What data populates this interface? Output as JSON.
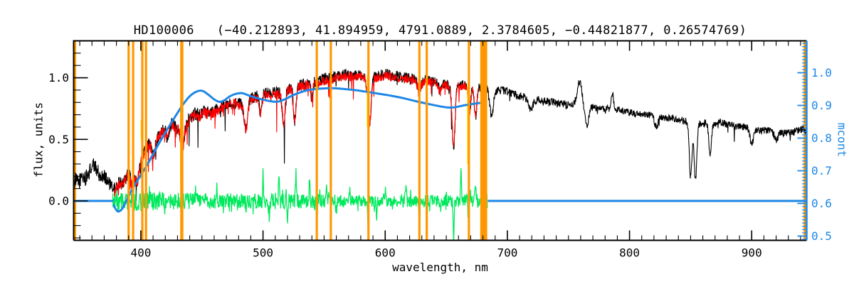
{
  "figure": {
    "title": "HD100006   (−40.212893, 41.894959, 4791.0889, 2.3784605, −0.44821877, 0.26574769)",
    "xlabel": "wavelength, nm",
    "ylabel_left": "flux, units",
    "ylabel_right": "mcont"
  },
  "colors": {
    "spectrum_observed": "#000000",
    "spectrum_fit": "#FF0000",
    "continuum": "#1E87E6",
    "residual": "#00E95C",
    "mask_lines": "#FF9800",
    "mask_hidden": "#FFE800",
    "axis": "#000000",
    "axis_right": "#1E87E6",
    "background": "#FFFFFF"
  },
  "chart_data": {
    "type": "line",
    "title": "HD100006   (−40.212893, 41.894959, 4791.0889, 2.3784605, −0.44821877, 0.26574769)",
    "xlabel": "wavelength, nm",
    "ylabel_left": "flux, units",
    "ylabel_right": "mcont",
    "grid": false,
    "x_range_nm": [
      345,
      945
    ],
    "y_range_flux": [
      -0.32,
      1.3
    ],
    "y_range_mcont": [
      0.486,
      1.097
    ],
    "x_major_ticks": [
      400,
      500,
      600,
      700,
      800,
      900
    ],
    "x_minor_step_nm": 10,
    "y_major_ticks_flux": [
      0.0,
      0.5,
      1.0
    ],
    "y_minor_step_flux": 0.1,
    "y_major_ticks_mcont": [
      0.5,
      0.6,
      0.7,
      0.8,
      0.9,
      1.0
    ],
    "y_minor_step_mcont": 0.01,
    "marker_lines_nm": [
      346,
      390,
      393.7,
      401.2,
      404.2,
      433.5,
      544,
      555.5,
      586.3,
      628,
      634,
      668.5,
      943.5
    ],
    "marker_band_nm": [
      677.8,
      683.5
    ],
    "series": [
      {
        "name": "observed-spectrum",
        "color": "#000000",
        "x_span": [
          345,
          945
        ],
        "noise_halfwidth": [
          [
            345,
            0.07
          ],
          [
            380,
            0.05
          ],
          [
            420,
            0.055
          ],
          [
            480,
            0.05
          ],
          [
            540,
            0.05
          ],
          [
            600,
            0.045
          ],
          [
            660,
            0.04
          ],
          [
            700,
            0.035
          ],
          [
            760,
            0.03
          ],
          [
            850,
            0.028
          ],
          [
            945,
            0.032
          ]
        ],
        "envelope": [
          [
            345,
            0.17
          ],
          [
            349,
            0.15
          ],
          [
            352,
            0.2
          ],
          [
            355,
            0.18
          ],
          [
            358,
            0.24
          ],
          [
            361,
            0.29
          ],
          [
            364,
            0.26
          ],
          [
            367,
            0.19
          ],
          [
            370,
            0.21
          ],
          [
            373,
            0.16
          ],
          [
            376,
            0.11
          ],
          [
            379,
            0.1
          ],
          [
            382,
            0.15
          ],
          [
            385,
            0.14
          ],
          [
            388,
            0.19
          ],
          [
            391,
            0.23
          ],
          [
            394,
            0.22
          ],
          [
            397,
            0.26
          ],
          [
            400,
            0.33
          ],
          [
            403,
            0.41
          ],
          [
            406,
            0.47
          ],
          [
            409,
            0.5
          ],
          [
            412,
            0.5
          ],
          [
            415,
            0.54
          ],
          [
            418,
            0.57
          ],
          [
            421,
            0.6
          ],
          [
            424,
            0.63
          ],
          [
            427,
            0.62
          ],
          [
            430,
            0.6
          ],
          [
            433,
            0.59
          ],
          [
            436,
            0.62
          ],
          [
            440,
            0.67
          ],
          [
            444,
            0.71
          ],
          [
            448,
            0.7
          ],
          [
            452,
            0.73
          ],
          [
            456,
            0.71
          ],
          [
            460,
            0.73
          ],
          [
            465,
            0.76
          ],
          [
            470,
            0.78
          ],
          [
            475,
            0.8
          ],
          [
            480,
            0.79
          ],
          [
            485,
            0.78
          ],
          [
            490,
            0.83
          ],
          [
            495,
            0.85
          ],
          [
            500,
            0.87
          ],
          [
            505,
            0.88
          ],
          [
            510,
            0.88
          ],
          [
            515,
            0.88
          ],
          [
            520,
            0.91
          ],
          [
            525,
            0.92
          ],
          [
            530,
            0.94
          ],
          [
            535,
            0.95
          ],
          [
            540,
            0.96
          ],
          [
            545,
            0.97
          ],
          [
            550,
            0.99
          ],
          [
            555,
            1.0
          ],
          [
            560,
            1.01
          ],
          [
            565,
            1.02
          ],
          [
            570,
            1.02
          ],
          [
            575,
            1.03
          ],
          [
            580,
            1.02
          ],
          [
            585,
            1.01
          ],
          [
            590,
            1.0
          ],
          [
            595,
            1.02
          ],
          [
            600,
            1.03
          ],
          [
            605,
            1.02
          ],
          [
            610,
            1.01
          ],
          [
            615,
            1.0
          ],
          [
            620,
            1.0
          ],
          [
            625,
            0.99
          ],
          [
            630,
            0.98
          ],
          [
            635,
            0.98
          ],
          [
            640,
            0.97
          ],
          [
            645,
            0.96
          ],
          [
            650,
            0.95
          ],
          [
            655,
            0.93
          ],
          [
            660,
            0.95
          ],
          [
            665,
            0.94
          ],
          [
            670,
            0.93
          ],
          [
            675,
            0.92
          ],
          [
            680,
            0.93
          ],
          [
            685,
            0.92
          ],
          [
            690,
            0.9
          ],
          [
            695,
            0.9
          ],
          [
            700,
            0.89
          ],
          [
            705,
            0.87
          ],
          [
            710,
            0.85
          ],
          [
            715,
            0.84
          ],
          [
            720,
            0.83
          ],
          [
            725,
            0.82
          ],
          [
            730,
            0.81
          ],
          [
            735,
            0.8
          ],
          [
            740,
            0.8
          ],
          [
            745,
            0.79
          ],
          [
            750,
            0.78
          ],
          [
            755,
            0.79
          ],
          [
            760,
            0.81
          ],
          [
            765,
            0.77
          ],
          [
            770,
            0.76
          ],
          [
            775,
            0.76
          ],
          [
            780,
            0.75
          ],
          [
            785,
            0.75
          ],
          [
            790,
            0.74
          ],
          [
            795,
            0.73
          ],
          [
            800,
            0.72
          ],
          [
            805,
            0.71
          ],
          [
            810,
            0.71
          ],
          [
            815,
            0.7
          ],
          [
            820,
            0.69
          ],
          [
            825,
            0.68
          ],
          [
            830,
            0.67
          ],
          [
            835,
            0.67
          ],
          [
            840,
            0.66
          ],
          [
            845,
            0.65
          ],
          [
            850,
            0.64
          ],
          [
            855,
            0.63
          ],
          [
            860,
            0.63
          ],
          [
            865,
            0.63
          ],
          [
            870,
            0.63
          ],
          [
            875,
            0.64
          ],
          [
            880,
            0.62
          ],
          [
            885,
            0.61
          ],
          [
            890,
            0.6
          ],
          [
            895,
            0.6
          ],
          [
            900,
            0.59
          ],
          [
            905,
            0.58
          ],
          [
            910,
            0.57
          ],
          [
            915,
            0.57
          ],
          [
            920,
            0.56
          ],
          [
            925,
            0.55
          ],
          [
            930,
            0.55
          ],
          [
            935,
            0.56
          ],
          [
            940,
            0.58
          ],
          [
            945,
            0.58
          ]
        ],
        "absorption_dips": [
          [
            393,
            0.1,
            1.2
          ],
          [
            397,
            0.1,
            1.2
          ],
          [
            410,
            0.14,
            1.3
          ],
          [
            422,
            0.1,
            1.0
          ],
          [
            434,
            0.18,
            1.4
          ],
          [
            486,
            0.22,
            1.3
          ],
          [
            498,
            0.18,
            1.0
          ],
          [
            517,
            0.26,
            1.2
          ],
          [
            526,
            0.28,
            1.0
          ],
          [
            540,
            0.12,
            0.8
          ],
          [
            587,
            0.42,
            1.3
          ],
          [
            628,
            0.08,
            1.5
          ],
          [
            645,
            0.07,
            1.2
          ],
          [
            656,
            0.5,
            1.2
          ],
          [
            669,
            0.22,
            1.0
          ],
          [
            674,
            0.24,
            1.0
          ],
          [
            687,
            0.22,
            1.5
          ],
          [
            719,
            0.08,
            2.0
          ],
          [
            765,
            0.16,
            1.5
          ],
          [
            822,
            0.08,
            1.5
          ],
          [
            850,
            0.45,
            1.1
          ],
          [
            854,
            0.46,
            1.1
          ],
          [
            866,
            0.24,
            1.1
          ],
          [
            900,
            0.12,
            1.5
          ],
          [
            920,
            0.06,
            1.5
          ]
        ],
        "emission_bumps": [
          [
            759,
            0.16,
            1.8
          ],
          [
            786,
            0.13,
            0.8
          ]
        ]
      },
      {
        "name": "fitted-spectrum",
        "color": "#FF0000",
        "x_span": [
          378.2,
          676.2
        ],
        "offset": -0.012,
        "noise_scale": 0.85
      },
      {
        "name": "continuum-mcont",
        "color": "#1E87E6",
        "points": [
          [
            377.5,
            -0.03
          ],
          [
            381,
            -0.085
          ],
          [
            385,
            -0.06
          ],
          [
            390,
            0.04
          ],
          [
            395,
            0.13
          ],
          [
            400,
            0.21
          ],
          [
            405,
            0.29
          ],
          [
            410,
            0.38
          ],
          [
            415,
            0.47
          ],
          [
            420,
            0.555
          ],
          [
            425,
            0.635
          ],
          [
            430,
            0.715
          ],
          [
            435,
            0.79
          ],
          [
            440,
            0.85
          ],
          [
            445,
            0.885
          ],
          [
            450,
            0.895
          ],
          [
            455,
            0.865
          ],
          [
            460,
            0.825
          ],
          [
            464,
            0.805
          ],
          [
            468,
            0.815
          ],
          [
            473,
            0.85
          ],
          [
            478,
            0.87
          ],
          [
            483,
            0.875
          ],
          [
            488,
            0.858
          ],
          [
            494,
            0.838
          ],
          [
            500,
            0.822
          ],
          [
            506,
            0.81
          ],
          [
            512,
            0.806
          ],
          [
            518,
            0.826
          ],
          [
            524,
            0.856
          ],
          [
            530,
            0.88
          ],
          [
            537,
            0.9
          ],
          [
            545,
            0.91
          ],
          [
            555,
            0.916
          ],
          [
            565,
            0.91
          ],
          [
            575,
            0.9
          ],
          [
            585,
            0.886
          ],
          [
            595,
            0.87
          ],
          [
            605,
            0.854
          ],
          [
            615,
            0.834
          ],
          [
            625,
            0.81
          ],
          [
            635,
            0.788
          ],
          [
            645,
            0.768
          ],
          [
            652,
            0.758
          ],
          [
            658,
            0.762
          ],
          [
            664,
            0.775
          ],
          [
            670,
            0.785
          ],
          [
            677,
            0.795
          ],
          [
            682,
            0.8
          ]
        ],
        "flat_zero_spans": [
          [
            345,
            377.5
          ],
          [
            684,
            945
          ]
        ]
      },
      {
        "name": "residual",
        "color": "#00E95C",
        "x_span": [
          377,
          684
        ],
        "baseline": 0.0,
        "noise_halfwidth": [
          [
            377,
            0.085
          ],
          [
            395,
            0.09
          ],
          [
            420,
            0.07
          ],
          [
            450,
            0.065
          ],
          [
            480,
            0.06
          ],
          [
            510,
            0.07
          ],
          [
            540,
            0.06
          ],
          [
            575,
            0.045
          ],
          [
            610,
            0.05
          ],
          [
            640,
            0.05
          ],
          [
            670,
            0.055
          ],
          [
            684,
            0.06
          ]
        ],
        "spikes": [
          [
            434,
            -0.12
          ],
          [
            445,
            0.1
          ],
          [
            462,
            0.12
          ],
          [
            486,
            -0.1
          ],
          [
            500,
            0.2
          ],
          [
            505,
            -0.13
          ],
          [
            513,
            0.17
          ],
          [
            520,
            -0.15
          ],
          [
            527,
            0.22
          ],
          [
            538,
            0.19
          ],
          [
            544,
            -0.16
          ],
          [
            552,
            0.12
          ],
          [
            560,
            -0.1
          ],
          [
            571,
            0.1
          ],
          [
            586,
            -0.2
          ],
          [
            593,
            -0.13
          ],
          [
            600,
            0.1
          ],
          [
            617,
            0.14
          ],
          [
            628,
            -0.3
          ],
          [
            634,
            -0.13
          ],
          [
            645,
            -0.1
          ],
          [
            656,
            -0.37
          ],
          [
            662,
            0.27
          ],
          [
            668,
            -0.14
          ],
          [
            674,
            0.12
          ],
          [
            679,
            0.25
          ],
          [
            680.6,
            -0.32
          ],
          [
            682,
            0.18
          ]
        ]
      },
      {
        "name": "masked-segments",
        "color": "#FFE800",
        "segments": [
          [
            400.4,
            0.5,
            0.66
          ],
          [
            432.7,
            0.18,
            0.74
          ],
          [
            585.5,
            0.6,
            1.02
          ],
          [
            667.6,
            0.3,
            0.95
          ]
        ]
      }
    ]
  }
}
